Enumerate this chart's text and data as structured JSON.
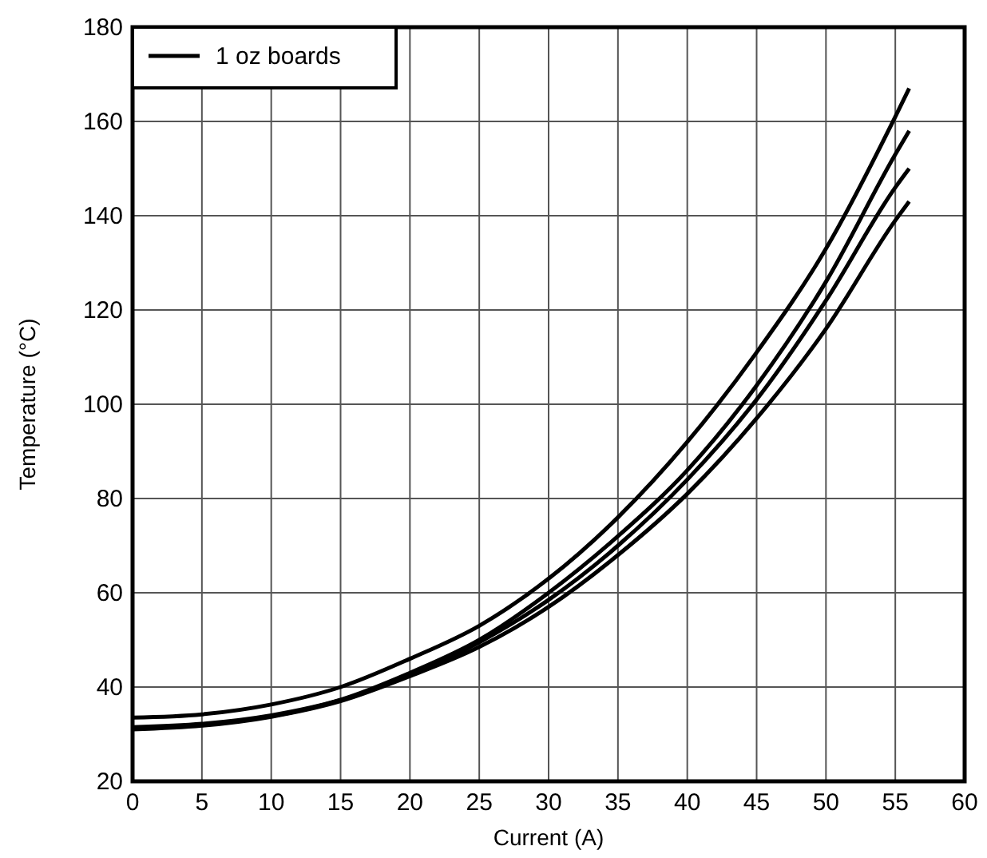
{
  "chart_data": {
    "type": "line",
    "xlabel": "Current (A)",
    "ylabel": "Temperature (°C)",
    "x": [
      0,
      5,
      10,
      15,
      20,
      25,
      30,
      35,
      40,
      45,
      50,
      55,
      56
    ],
    "series": [
      {
        "name": "1 oz boards",
        "color": "#000000",
        "values": [
          33.5,
          34.2,
          36.3,
          40,
          46,
          53,
          63,
          76,
          92,
          111,
          133,
          161,
          167
        ]
      },
      {
        "color": "#000000",
        "values": [
          31.5,
          32.2,
          34,
          37.3,
          43,
          50,
          60,
          72,
          86,
          104,
          126,
          153,
          158
        ]
      },
      {
        "color": "#000000",
        "values": [
          31.3,
          32,
          33.8,
          37.2,
          42.5,
          49.5,
          58.5,
          70,
          84,
          101,
          122,
          146,
          150
        ]
      },
      {
        "color": "#000000",
        "values": [
          31,
          31.8,
          33.7,
          37,
          42.3,
          48.5,
          57,
          68,
          81,
          97,
          116,
          139,
          143
        ]
      }
    ],
    "xlim": [
      0,
      60
    ],
    "xticks": [
      0,
      5,
      10,
      15,
      20,
      25,
      30,
      35,
      40,
      45,
      50,
      55,
      60
    ],
    "ylim": [
      20,
      180
    ],
    "yticks": [
      20,
      40,
      60,
      80,
      100,
      120,
      140,
      160,
      180
    ],
    "grid": true,
    "legend": "top left",
    "line_style": "solid"
  }
}
